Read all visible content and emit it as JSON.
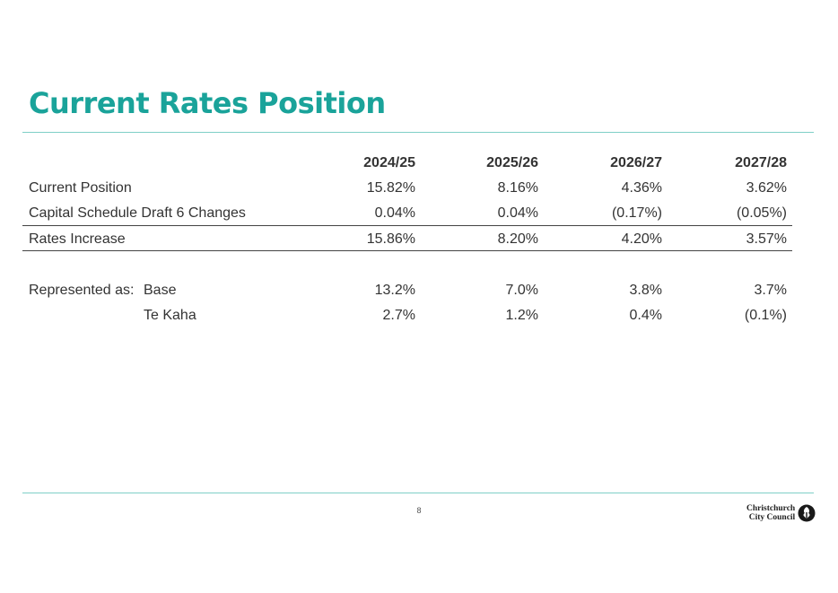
{
  "page": {
    "title": "Current Rates Position",
    "page_number": "8",
    "logo_line1": "Christchurch",
    "logo_line2": "City Council",
    "accent_color": "#1aa39a"
  },
  "table": {
    "columns": [
      "2024/25",
      "2025/26",
      "2026/27",
      "2027/28"
    ],
    "rows": [
      {
        "label": "Current Position",
        "values": [
          "15.82%",
          "8.16%",
          "4.36%",
          "3.62%"
        ]
      },
      {
        "label": "Capital Schedule Draft 6 Changes",
        "values": [
          "0.04%",
          "0.04%",
          "(0.17%)",
          "(0.05%)"
        ]
      },
      {
        "label": "Rates Increase",
        "values": [
          "15.86%",
          "8.20%",
          "4.20%",
          "3.57%"
        ]
      }
    ],
    "represented_as_label": "Represented as:",
    "represented_rows": [
      {
        "label": "Base",
        "values": [
          "13.2%",
          "7.0%",
          "3.8%",
          "3.7%"
        ]
      },
      {
        "label": "Te Kaha",
        "values": [
          "2.7%",
          "1.2%",
          "0.4%",
          "(0.1%)"
        ]
      }
    ]
  }
}
